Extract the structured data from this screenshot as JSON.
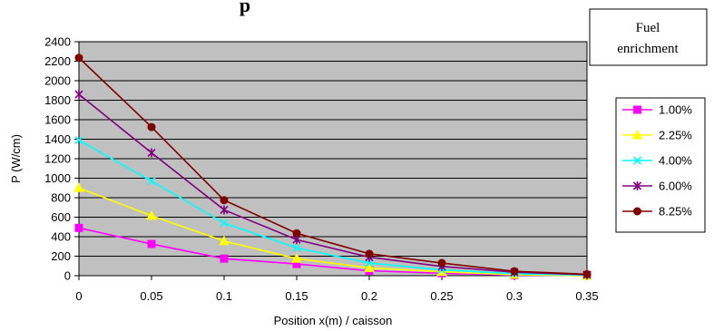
{
  "chart_data": {
    "type": "line",
    "title_visible_fragment": "p",
    "xlabel": "Position x(m) / caisson",
    "ylabel": "P (W/cm)",
    "xlim": [
      0,
      0.35
    ],
    "ylim": [
      0,
      2400
    ],
    "x_ticks": [
      "0",
      "0.05",
      "0.1",
      "0.15",
      "0.2",
      "0.25",
      "0.3",
      "0.35"
    ],
    "y_ticks": [
      "0",
      "200",
      "400",
      "600",
      "800",
      "1000",
      "1200",
      "1400",
      "1600",
      "1800",
      "2000",
      "2200",
      "2400"
    ],
    "grid": "horizontal",
    "plot_background": "#c0c0c0",
    "legend_title": [
      "Fuel",
      "enrichment"
    ],
    "legend_position": "right",
    "x": [
      0,
      0.05,
      0.1,
      0.15,
      0.2,
      0.25,
      0.3,
      0.35
    ],
    "series": [
      {
        "name": "1.00%",
        "color": "#ff00ff",
        "marker": "square",
        "values": [
          490,
          325,
          175,
          120,
          50,
          25,
          5,
          5
        ]
      },
      {
        "name": "2.25%",
        "color": "#ffff00",
        "marker": "triangle",
        "values": [
          900,
          615,
          355,
          175,
          80,
          40,
          10,
          0
        ]
      },
      {
        "name": "4.00%",
        "color": "#00ffff",
        "marker": "x",
        "values": [
          1390,
          970,
          540,
          285,
          130,
          60,
          20,
          5
        ]
      },
      {
        "name": "6.00%",
        "color": "#800080",
        "marker": "star",
        "values": [
          1860,
          1260,
          675,
          370,
          190,
          95,
          35,
          10
        ]
      },
      {
        "name": "8.25%",
        "color": "#800000",
        "marker": "circle",
        "values": [
          2235,
          1525,
          775,
          435,
          225,
          130,
          45,
          15
        ]
      }
    ]
  }
}
